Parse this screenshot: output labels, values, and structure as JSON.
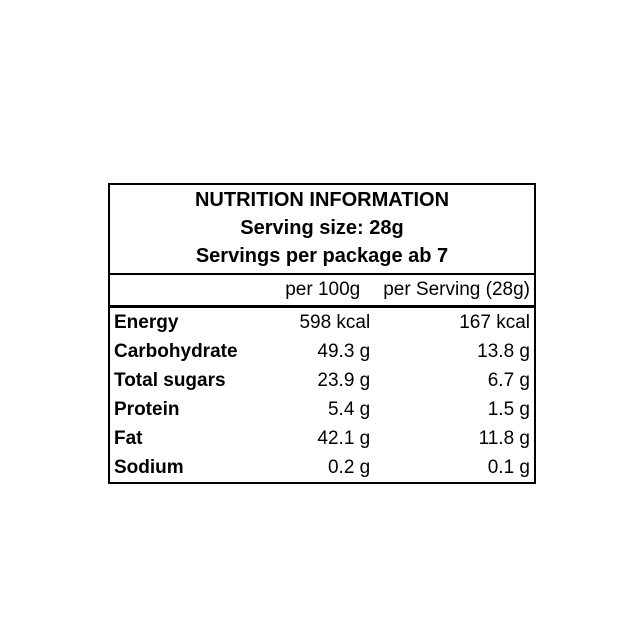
{
  "page": {
    "background_color": "#ffffff",
    "text_color": "#000000",
    "border_color": "#000000"
  },
  "table": {
    "header": {
      "title": "NUTRITION INFORMATION",
      "serving_size": "Serving size: 28g",
      "servings_per_package": "Servings per package ab 7"
    },
    "columns": {
      "per_100g": "per 100g",
      "per_serving": "per Serving (28g)"
    },
    "rows": [
      {
        "label": "Energy",
        "per_100g": "598 kcal",
        "per_serving": "167 kcal"
      },
      {
        "label": "Carbohydrate",
        "per_100g": "49.3 g",
        "per_serving": "13.8 g"
      },
      {
        "label": "Total sugars",
        "per_100g": "23.9 g",
        "per_serving": "6.7 g"
      },
      {
        "label": "Protein",
        "per_100g": "5.4 g",
        "per_serving": "1.5 g"
      },
      {
        "label": "Fat",
        "per_100g": "42.1 g",
        "per_serving": "11.8 g"
      },
      {
        "label": "Sodium",
        "per_100g": "0.2 g",
        "per_serving": "0.1 g"
      }
    ]
  },
  "chart_data": {
    "type": "table",
    "title": "NUTRITION INFORMATION",
    "columns": [
      "",
      "per 100g",
      "per Serving (28g)"
    ],
    "rows": [
      [
        "Energy",
        "598 kcal",
        "167 kcal"
      ],
      [
        "Carbohydrate",
        "49.3 g",
        "13.8 g"
      ],
      [
        "Total sugars",
        "23.9 g",
        "6.7 g"
      ],
      [
        "Protein",
        "5.4 g",
        "1.5 g"
      ],
      [
        "Fat",
        "42.1 g",
        "11.8 g"
      ],
      [
        "Sodium",
        "0.2 g",
        "0.1 g"
      ]
    ]
  }
}
